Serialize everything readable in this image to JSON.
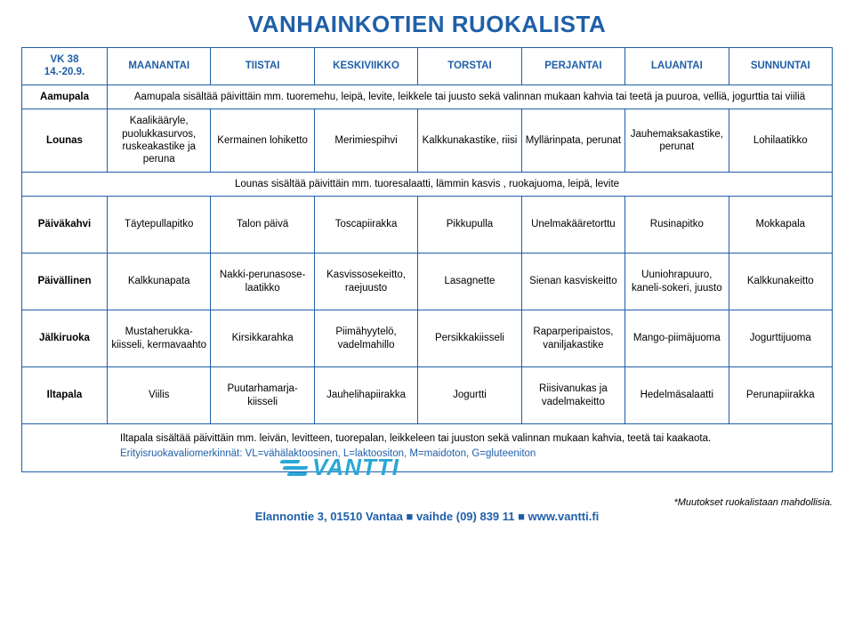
{
  "colors": {
    "accent": "#1f5fa8",
    "logo": "#2aa7d6",
    "border": "#1f5fa8",
    "background": "#ffffff",
    "text": "#000000"
  },
  "title": "VANHAINKOTIEN RUOKALISTA",
  "week": {
    "label": "VK 38",
    "dates": "14.-20.9."
  },
  "days": [
    "MAANANTAI",
    "TIISTAI",
    "KESKIVIIKKO",
    "TORSTAI",
    "PERJANTAI",
    "LAUANTAI",
    "SUNNUNTAI"
  ],
  "rows": {
    "aamupala": {
      "label": "Aamupala",
      "note": "Aamupala sisältää päivittäin mm. tuoremehu, leipä, levite, leikkele tai juusto sekä valinnan mukaan kahvia tai teetä ja puuroa, velliä, jogurttia tai viiliä"
    },
    "lounas": {
      "label": "Lounas",
      "cells": [
        "Kaalikääryle, puolukkasurvos, ruskeakastike ja peruna",
        "Kermainen lohiketto",
        "Merimiespihvi",
        "Kalkkunakastike, riisi",
        "Myllärinpata, perunat",
        "Jauhemaksakastike, perunat",
        "Lohilaatikko"
      ],
      "note": "Lounas sisältää päivittäin mm. tuoresalaatti, lämmin kasvis , ruokajuoma, leipä, levite"
    },
    "paivakahvi": {
      "label": "Päiväkahvi",
      "cells": [
        "Täytepullapitko",
        "Talon päivä",
        "Toscapiirakka",
        "Pikkupulla",
        "Unelmakääretorttu",
        "Rusinapitko",
        "Mokkapala"
      ]
    },
    "paivallinen": {
      "label": "Päivällinen",
      "cells": [
        "Kalkkunapata",
        "Nakki-perunasose-laatikko",
        "Kasvissosekeitto, raejuusto",
        "Lasagnette",
        "Sienan kasviskeitto",
        "Uuniohrapuuro, kaneli-sokeri, juusto",
        "Kalkkunakeitto"
      ]
    },
    "jalkiruoka": {
      "label": "Jälkiruoka",
      "cells": [
        "Mustaherukka-kiisseli, kermavaahto",
        "Kirsikkarahka",
        "Piimähyytelö, vadelmahillo",
        "Persikkakiisseli",
        "Raparperipaistos, vaniljakastike",
        "Mango-piimäjuoma",
        "Jogurttijuoma"
      ]
    },
    "iltapala": {
      "label": "Iltapala",
      "cells": [
        "Viilis",
        "Puutarhamarja-kiisseli",
        "Jauhelihapiirakka",
        "Jogurtti",
        "Riisivanukas ja vadelmakeitto",
        "Hedelmäsalaatti",
        "Perunapiirakka"
      ],
      "note": "Iltapala sisältää päivittäin mm. leivän, levitteen, tuorepalan, leikkeleen tai juuston sekä valinnan mukaan kahvia, teetä tai kaakaota.",
      "diet_note": "Erityisruokavaliomerkinnät: VL=vähälaktoosinen, L=laktoositon, M=maidoton, G=gluteeniton"
    }
  },
  "logo_text": "VANTTI",
  "footer": {
    "disclaimer": "*Muutokset ruokalistaan mahdollisia.",
    "contact": "Elannontie 3, 01510 Vantaa ■ vaihde (09) 839 11 ■ www.vantti.fi"
  }
}
